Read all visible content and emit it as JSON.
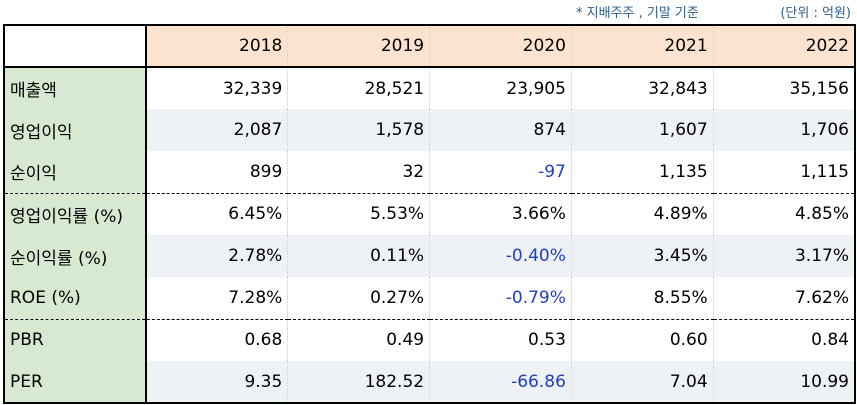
{
  "notes": {
    "basis": "* 지배주주 , 기말 기준",
    "unit": "(단위 : 억원)"
  },
  "table": {
    "corner": "",
    "years": [
      "2018",
      "2019",
      "2020",
      "2021",
      "2022"
    ],
    "rows": [
      {
        "label": "매출액",
        "values": [
          "32,339",
          "28,521",
          "23,905",
          "32,843",
          "35,156"
        ],
        "negative": [
          false,
          false,
          false,
          false,
          false
        ],
        "alt": false,
        "sep": false
      },
      {
        "label": "영업이익",
        "values": [
          "2,087",
          "1,578",
          "874",
          "1,607",
          "1,706"
        ],
        "negative": [
          false,
          false,
          false,
          false,
          false
        ],
        "alt": true,
        "sep": false
      },
      {
        "label": "순이익",
        "values": [
          "899",
          "32",
          "-97",
          "1,135",
          "1,115"
        ],
        "negative": [
          false,
          false,
          true,
          false,
          false
        ],
        "alt": false,
        "sep": false
      },
      {
        "label": "영업이익률 (%)",
        "values": [
          "6.45%",
          "5.53%",
          "3.66%",
          "4.89%",
          "4.85%"
        ],
        "negative": [
          false,
          false,
          false,
          false,
          false
        ],
        "alt": false,
        "sep": true
      },
      {
        "label": "순이익률 (%)",
        "values": [
          "2.78%",
          "0.11%",
          "-0.40%",
          "3.45%",
          "3.17%"
        ],
        "negative": [
          false,
          false,
          true,
          false,
          false
        ],
        "alt": true,
        "sep": false
      },
      {
        "label": "ROE (%)",
        "values": [
          "7.28%",
          "0.27%",
          "-0.79%",
          "8.55%",
          "7.62%"
        ],
        "negative": [
          false,
          false,
          true,
          false,
          false
        ],
        "alt": false,
        "sep": false
      },
      {
        "label": "PBR",
        "values": [
          "0.68",
          "0.49",
          "0.53",
          "0.60",
          "0.84"
        ],
        "negative": [
          false,
          false,
          false,
          false,
          false
        ],
        "alt": false,
        "sep": true
      },
      {
        "label": "PER",
        "values": [
          "9.35",
          "182.52",
          "-66.86",
          "7.04",
          "10.99"
        ],
        "negative": [
          false,
          false,
          true,
          false,
          false
        ],
        "alt": true,
        "sep": false
      }
    ]
  },
  "colors": {
    "header_bg": "#fbe3cf",
    "label_bg": "#d8e9d2",
    "alt_row_bg": "#eef1f5",
    "negative_text": "#1f3fbf",
    "note_text": "#2f5f8a"
  }
}
